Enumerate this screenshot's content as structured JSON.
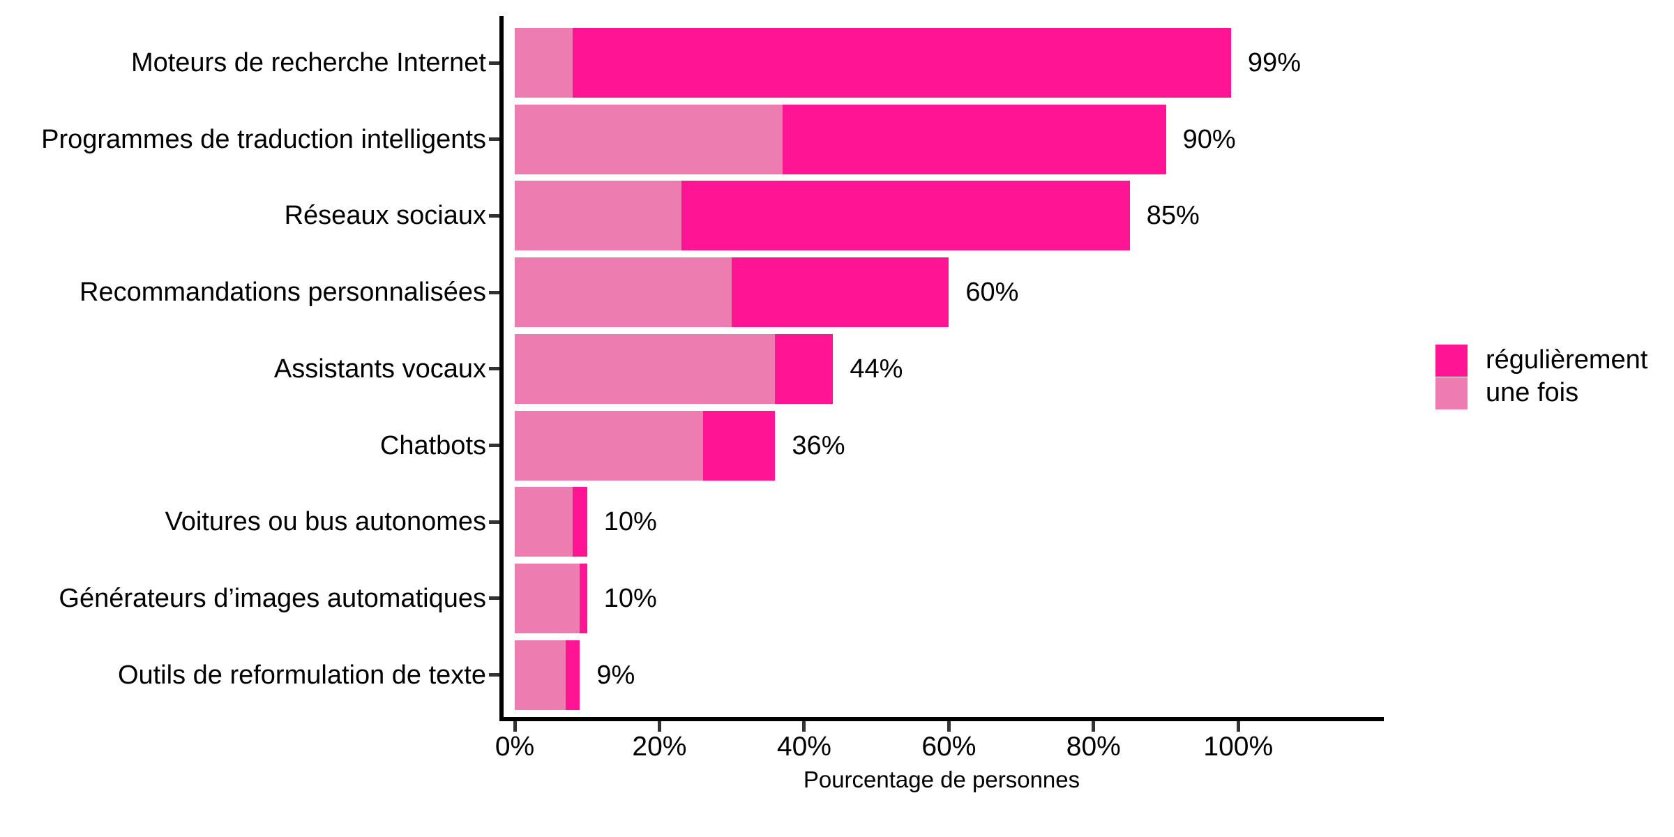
{
  "chart_data": {
    "type": "bar",
    "orientation": "horizontal",
    "stacked": true,
    "title": "",
    "xlabel": "Pourcentage de personnes",
    "ylabel": "",
    "xlim": [
      0,
      120
    ],
    "grid": false,
    "legend_position": "right",
    "categories": [
      "Moteurs de recherche Internet",
      "Programmes de traduction intelligents",
      "Réseaux sociaux",
      "Recommandations personnalisées",
      "Assistants vocaux",
      "Chatbots",
      "Voitures ou bus autonomes",
      "Générateurs d’images automatiques",
      "Outils de reformulation de texte"
    ],
    "stack_order_from_axis": [
      "une fois",
      "régulièrement"
    ],
    "series": [
      {
        "name": "régulièrement",
        "color": "#FF1493",
        "values": [
          91,
          53,
          62,
          30,
          8,
          10,
          2,
          1,
          2
        ]
      },
      {
        "name": "une fois",
        "color": "#ED7CB0",
        "values": [
          8,
          37,
          23,
          30,
          36,
          26,
          8,
          9,
          7
        ]
      }
    ],
    "totals": [
      99,
      90,
      85,
      60,
      44,
      36,
      10,
      10,
      9
    ],
    "total_labels": [
      "99%",
      "90%",
      "85%",
      "60%",
      "44%",
      "36%",
      "10%",
      "10%",
      "9%"
    ],
    "x_ticks": [
      0,
      20,
      40,
      60,
      80,
      100
    ],
    "x_tick_labels": [
      "0%",
      "20%",
      "40%",
      "60%",
      "80%",
      "100%"
    ]
  },
  "legend": {
    "items": [
      {
        "label": "régulièrement",
        "color": "#FF1493"
      },
      {
        "label": "une fois",
        "color": "#ED7CB0"
      }
    ]
  },
  "colors": {
    "background": "#ffffff",
    "axis_line": "#000000",
    "tick_mark": "#333333",
    "text": "#000000"
  }
}
